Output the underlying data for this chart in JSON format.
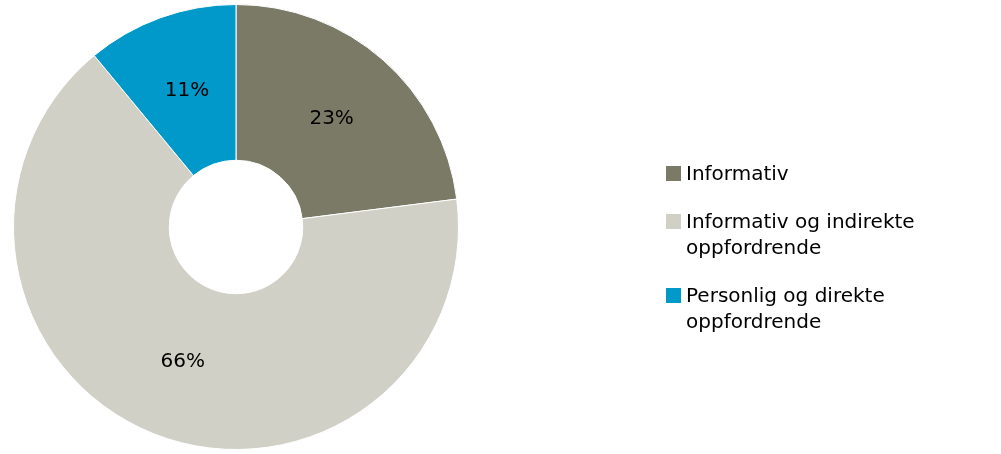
{
  "chart_data": {
    "type": "donut",
    "categories": [
      "Informativ",
      "Informativ og indirekte oppfordrende",
      "Personlig og direkte oppfordrende"
    ],
    "values": [
      23,
      66,
      11
    ],
    "colors": [
      "#7a7a66",
      "#d0d0c6",
      "#0099c9"
    ],
    "value_labels": [
      "23%",
      "66%",
      "11%"
    ],
    "legend": "right"
  }
}
